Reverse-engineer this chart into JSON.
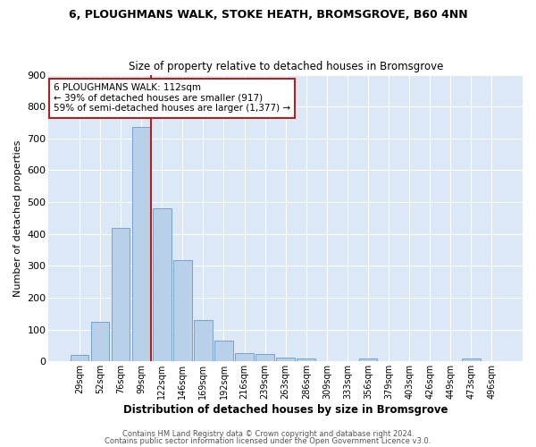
{
  "title1": "6, PLOUGHMANS WALK, STOKE HEATH, BROMSGROVE, B60 4NN",
  "title2": "Size of property relative to detached houses in Bromsgrove",
  "xlabel": "Distribution of detached houses by size in Bromsgrove",
  "ylabel": "Number of detached properties",
  "bin_labels": [
    "29sqm",
    "52sqm",
    "76sqm",
    "99sqm",
    "122sqm",
    "146sqm",
    "169sqm",
    "192sqm",
    "216sqm",
    "239sqm",
    "263sqm",
    "286sqm",
    "309sqm",
    "333sqm",
    "356sqm",
    "379sqm",
    "403sqm",
    "426sqm",
    "449sqm",
    "473sqm",
    "496sqm"
  ],
  "bar_values": [
    20,
    123,
    418,
    735,
    480,
    317,
    130,
    65,
    27,
    22,
    12,
    8,
    0,
    0,
    8,
    0,
    0,
    0,
    0,
    8,
    0
  ],
  "bar_color": "#b8d0e8",
  "bar_edge_color": "#6699cc",
  "vline_color": "#aa2222",
  "annotation_text": "6 PLOUGHMANS WALK: 112sqm\n← 39% of detached houses are smaller (917)\n59% of semi-detached houses are larger (1,377) →",
  "annotation_box_facecolor": "#ffffff",
  "annotation_box_edgecolor": "#aa2222",
  "ylim": [
    0,
    900
  ],
  "yticks": [
    0,
    100,
    200,
    300,
    400,
    500,
    600,
    700,
    800,
    900
  ],
  "footer1": "Contains HM Land Registry data © Crown copyright and database right 2024.",
  "footer2": "Contains public sector information licensed under the Open Government Licence v3.0.",
  "fig_bg_color": "#ffffff",
  "plot_bg_color": "#dce8f5"
}
